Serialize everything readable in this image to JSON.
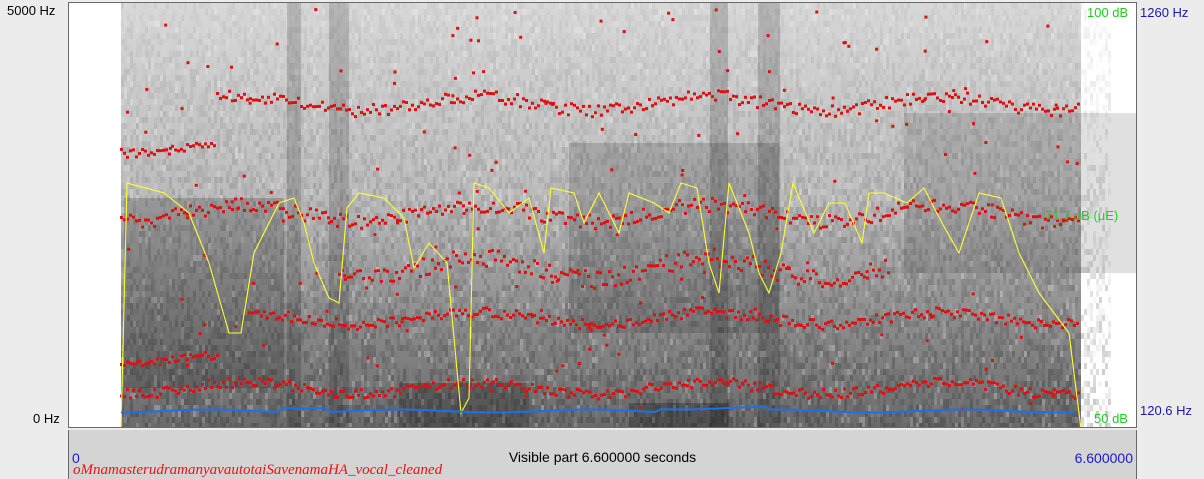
{
  "left_axis": {
    "top_label": "5000 Hz",
    "bottom_label": "0 Hz"
  },
  "right_axis": {
    "intensity_top": "100 dB",
    "intensity_mid": "71.7 dB (μE)",
    "intensity_bottom": "50 dB",
    "pitch_top": "1260 Hz",
    "pitch_bottom": "120.6 Hz"
  },
  "bottom_bar": {
    "start_time": "0",
    "visible_part": "Visible part 6.600000 seconds",
    "end_time": "6.600000",
    "sound_name": "oMnamasterudramanyavautotaiSavenamaHA_vocal_cleaned"
  },
  "colors": {
    "formant": "#dd1111",
    "intensity": "#ffff33",
    "pitch": "#1f6fe6",
    "intensity_label": "#22cc22",
    "pitch_label": "#1a1aaa",
    "time_label": "#1a1acc",
    "name_label": "#ee1111"
  }
}
